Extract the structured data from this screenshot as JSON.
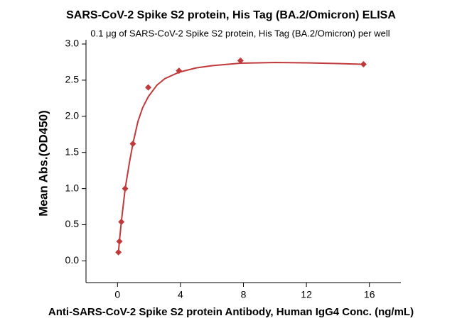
{
  "chart_data": {
    "type": "scatter",
    "title": "SARS-CoV-2 Spike S2 protein, His Tag (BA.2/Omicron) ELISA",
    "subtitle": "0.1 μg of SARS-CoV-2 Spike S2 protein, His Tag (BA.2/Omicron) per well",
    "x_label": "Anti-SARS-CoV-2 Spike S2 protein Antibody, Human IgG4 Conc. (ng/mL)",
    "y_label": "Mean Abs.(OD450)",
    "x": [
      0.061,
      0.122,
      0.244,
      0.488,
      0.977,
      1.953,
      3.906,
      7.813,
      15.625
    ],
    "values": [
      0.12,
      0.27,
      0.54,
      1.0,
      1.62,
      2.4,
      2.63,
      2.77,
      2.72
    ],
    "color": "#c0393b",
    "fit": {
      "x": [
        0.061,
        0.122,
        0.244,
        0.488,
        0.75,
        0.977,
        1.3,
        1.6,
        1.953,
        2.5,
        3.0,
        3.906,
        5.0,
        6.0,
        7.813,
        10.0,
        12.0,
        14.0,
        15.625
      ],
      "values": [
        0.12,
        0.27,
        0.54,
        1.0,
        1.35,
        1.62,
        1.93,
        2.12,
        2.27,
        2.43,
        2.52,
        2.61,
        2.67,
        2.7,
        2.735,
        2.745,
        2.74,
        2.73,
        2.72
      ]
    },
    "xlim": [
      -2,
      18
    ],
    "ylim": [
      -0.3,
      3.0
    ],
    "xticks": [
      0,
      4,
      8,
      12,
      16
    ],
    "yticks": [
      {
        "value": 0,
        "label": "0.0"
      },
      0.5,
      {
        "value": 1,
        "label": "1.0"
      },
      1.5,
      {
        "value": 2,
        "label": "2.0"
      },
      2.5,
      {
        "value": 3,
        "label": "3.0"
      }
    ]
  }
}
